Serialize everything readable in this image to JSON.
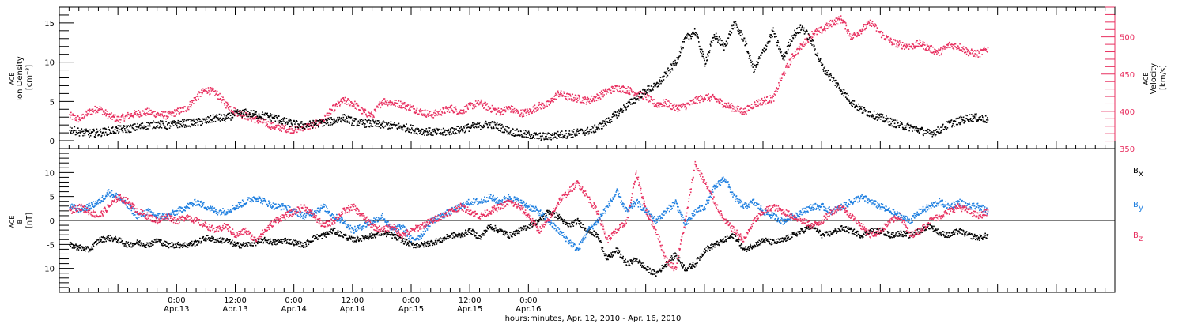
{
  "colors": {
    "black": "#000000",
    "pink": "#e83060",
    "blue": "#1e7fe0"
  },
  "chart_data": [
    {
      "type": "scatter",
      "panel": "top",
      "ylabel_left_lines": [
        "ACE",
        "Ion Density",
        "[cm⁻³]"
      ],
      "ylabel_right_lines": [
        "ACE",
        "Velocity",
        "[km/s]"
      ],
      "ylim_left": [
        -1,
        17
      ],
      "yticks_left": [
        "0",
        "5",
        "10",
        "15"
      ],
      "yticks_left_values": [
        0,
        5,
        10,
        15
      ],
      "ylim_right": [
        350,
        540
      ],
      "yticks_right": [
        "350",
        "400",
        "450",
        "500"
      ],
      "yticks_right_values": [
        350,
        400,
        450,
        500
      ],
      "grid": false,
      "series": [
        {
          "axis": "left",
          "color": "#000000",
          "x": [
            -22,
            -20,
            -18,
            -16,
            -14,
            -12,
            -10,
            -8,
            -6,
            -4,
            -2,
            0,
            2,
            4,
            6,
            8,
            10,
            12,
            14,
            16,
            18,
            20,
            22,
            24,
            26,
            28,
            30,
            32,
            34,
            36,
            38,
            40,
            42,
            44,
            46,
            48,
            50,
            52,
            54,
            56,
            58,
            60,
            62,
            64,
            66,
            68,
            70,
            72,
            74,
            76,
            78,
            80,
            82,
            84,
            86,
            88,
            90,
            92,
            94,
            96,
            98,
            100,
            102,
            104,
            106,
            108,
            110,
            112,
            114,
            116,
            118,
            120,
            122,
            124,
            126,
            128,
            130,
            132,
            134,
            136,
            138,
            140,
            142,
            144,
            146,
            148,
            150,
            152,
            154,
            156,
            158,
            160,
            162,
            164,
            166
          ],
          "values": [
            1.5,
            1.2,
            1.0,
            1.1,
            1.3,
            1.5,
            1.6,
            1.8,
            2.0,
            2.2,
            2.0,
            2.2,
            2.3,
            2.4,
            2.6,
            3.0,
            2.9,
            3.5,
            3.6,
            3.4,
            3.2,
            3.0,
            2.5,
            2.2,
            2.0,
            2.2,
            2.4,
            2.6,
            3.0,
            2.5,
            2.3,
            2.2,
            2.1,
            2.0,
            1.8,
            1.6,
            1.3,
            1.2,
            1.1,
            1.3,
            1.5,
            1.8,
            2.0,
            2.2,
            1.8,
            1.3,
            1.0,
            0.8,
            0.6,
            0.6,
            0.8,
            0.9,
            1.1,
            1.3,
            1.7,
            2.5,
            3.5,
            4.5,
            5.5,
            6.5,
            7.0,
            8.5,
            10.0,
            13.0,
            14.0,
            10.0,
            13.5,
            12.0,
            15.0,
            13.0,
            9.0,
            11.5,
            14.0,
            10.5,
            13.5,
            14.5,
            12.5,
            9.5,
            8.0,
            6.5,
            5.0,
            4.0,
            3.5,
            3.0,
            2.5,
            2.0,
            1.8,
            1.4,
            1.0,
            1.4,
            2.2,
            2.6,
            3.0,
            3.0,
            2.7
          ]
        },
        {
          "axis": "right",
          "color": "#e83060",
          "x": [
            -22,
            -20,
            -18,
            -16,
            -14,
            -12,
            -10,
            -8,
            -6,
            -4,
            -2,
            0,
            2,
            4,
            6,
            8,
            10,
            12,
            14,
            16,
            18,
            20,
            22,
            24,
            26,
            28,
            30,
            32,
            34,
            36,
            38,
            40,
            42,
            44,
            46,
            48,
            50,
            52,
            54,
            56,
            58,
            60,
            62,
            64,
            66,
            68,
            70,
            72,
            74,
            76,
            78,
            80,
            82,
            84,
            86,
            88,
            90,
            92,
            94,
            96,
            98,
            100,
            102,
            104,
            106,
            108,
            110,
            112,
            114,
            116,
            118,
            120,
            122,
            124,
            126,
            128,
            130,
            132,
            134,
            136,
            138,
            140,
            142,
            144,
            146,
            148,
            150,
            152,
            154,
            156,
            158,
            160,
            162,
            164,
            166
          ],
          "values": [
            395,
            390,
            400,
            405,
            395,
            390,
            395,
            398,
            400,
            397,
            395,
            400,
            405,
            420,
            430,
            425,
            410,
            400,
            395,
            390,
            385,
            380,
            378,
            376,
            380,
            382,
            390,
            405,
            415,
            412,
            400,
            395,
            415,
            412,
            410,
            405,
            400,
            396,
            400,
            405,
            400,
            408,
            412,
            405,
            400,
            405,
            398,
            400,
            408,
            410,
            425,
            420,
            418,
            415,
            420,
            428,
            432,
            430,
            425,
            420,
            410,
            412,
            405,
            408,
            415,
            420,
            418,
            410,
            405,
            400,
            410,
            415,
            418,
            450,
            475,
            490,
            505,
            510,
            520,
            525,
            500,
            510,
            520,
            505,
            495,
            490,
            488,
            492,
            485,
            480,
            490,
            488,
            480,
            478,
            485
          ]
        }
      ]
    },
    {
      "type": "scatter",
      "panel": "bottom",
      "ylabel_lines": [
        "ACE",
        "B",
        "[nT]"
      ],
      "ylim": [
        -15,
        15
      ],
      "yticks": [
        "-10",
        "-5",
        "0",
        "5",
        "10"
      ],
      "yticks_values": [
        -10,
        -5,
        0,
        5,
        10
      ],
      "zero_line": true,
      "grid": false,
      "series": [
        {
          "name": "Bx",
          "legend_main": "B",
          "legend_sub": "x",
          "color": "#000000",
          "x": [
            -22,
            -20,
            -18,
            -16,
            -14,
            -12,
            -10,
            -8,
            -6,
            -4,
            -2,
            0,
            2,
            4,
            6,
            8,
            10,
            12,
            14,
            16,
            18,
            20,
            22,
            24,
            26,
            28,
            30,
            32,
            34,
            36,
            38,
            40,
            42,
            44,
            46,
            48,
            50,
            52,
            54,
            56,
            58,
            60,
            62,
            64,
            66,
            68,
            70,
            72,
            74,
            76,
            78,
            80,
            82,
            84,
            86,
            88,
            90,
            92,
            94,
            96,
            98,
            100,
            102,
            104,
            106,
            108,
            110,
            112,
            114,
            116,
            118,
            120,
            122,
            124,
            126,
            128,
            130,
            132,
            134,
            136,
            138,
            140,
            142,
            144,
            146,
            148,
            150,
            152,
            154,
            156,
            158,
            160,
            162,
            164,
            166
          ],
          "values": [
            -5,
            -5.5,
            -6,
            -4,
            -3.5,
            -4,
            -5,
            -4.5,
            -5,
            -4,
            -5,
            -5,
            -5,
            -4.5,
            -3.5,
            -4,
            -4,
            -5,
            -5,
            -4.5,
            -4,
            -4.5,
            -4,
            -4.5,
            -5,
            -3.5,
            -3,
            -2,
            -3,
            -4,
            -3.5,
            -3,
            -2.5,
            -3,
            -4,
            -5,
            -5,
            -4.5,
            -4,
            -3,
            -3,
            -2,
            -3.5,
            -1,
            -2,
            -3,
            -2,
            -1,
            0,
            2,
            1,
            -1,
            0,
            -2,
            -3,
            -8,
            -6,
            -9,
            -8,
            -10,
            -11,
            -9,
            -7,
            -10,
            -9,
            -6,
            -5,
            -4,
            -3,
            -6,
            -5,
            -4,
            -4.5,
            -4,
            -3,
            -2,
            -1,
            -3,
            -2.5,
            -1.5,
            -2,
            -3,
            -2,
            -2,
            -3,
            -2.5,
            -3,
            -2,
            -1,
            -2.5,
            -3,
            -2,
            -3,
            -3.5,
            -3
          ]
        },
        {
          "name": "By",
          "legend_main": "B",
          "legend_sub": "y",
          "color": "#1e7fe0",
          "x": [
            -22,
            -20,
            -18,
            -16,
            -14,
            -12,
            -10,
            -8,
            -6,
            -4,
            -2,
            0,
            2,
            4,
            6,
            8,
            10,
            12,
            14,
            16,
            18,
            20,
            22,
            24,
            26,
            28,
            30,
            32,
            34,
            36,
            38,
            40,
            42,
            44,
            46,
            48,
            50,
            52,
            54,
            56,
            58,
            60,
            62,
            64,
            66,
            68,
            70,
            72,
            74,
            76,
            78,
            80,
            82,
            84,
            86,
            88,
            90,
            92,
            94,
            96,
            98,
            100,
            102,
            104,
            106,
            108,
            110,
            112,
            114,
            116,
            118,
            120,
            122,
            124,
            126,
            128,
            130,
            132,
            134,
            136,
            138,
            140,
            142,
            144,
            146,
            148,
            150,
            152,
            154,
            156,
            158,
            160,
            162,
            164,
            166
          ],
          "values": [
            3,
            2.5,
            3,
            4,
            6,
            5,
            3,
            1,
            2,
            1,
            1,
            2,
            3,
            4,
            3,
            2,
            2,
            3,
            4,
            5,
            4,
            3,
            3,
            2,
            1,
            2,
            3,
            1,
            0,
            -2,
            -1,
            0,
            1,
            -2,
            -1,
            -4,
            -3,
            0,
            1,
            2,
            3,
            4,
            4,
            5,
            4,
            5,
            4,
            3,
            2,
            0,
            -2,
            -4,
            -6,
            -2,
            0,
            3,
            6,
            2,
            4,
            2,
            0,
            2,
            4,
            -1,
            2,
            3,
            7,
            9,
            5,
            3,
            4,
            2,
            1,
            0,
            1,
            2,
            3,
            3,
            2,
            3,
            4,
            5,
            4,
            3,
            2,
            1,
            0,
            2,
            3,
            4,
            3,
            4,
            3,
            3,
            2
          ]
        },
        {
          "name": "Bz",
          "legend_main": "B",
          "legend_sub": "z",
          "color": "#e83060",
          "x": [
            -22,
            -20,
            -18,
            -16,
            -14,
            -12,
            -10,
            -8,
            -6,
            -4,
            -2,
            0,
            2,
            4,
            6,
            8,
            10,
            12,
            14,
            16,
            18,
            20,
            22,
            24,
            26,
            28,
            30,
            32,
            34,
            36,
            38,
            40,
            42,
            44,
            46,
            48,
            50,
            52,
            54,
            56,
            58,
            60,
            62,
            64,
            66,
            68,
            70,
            72,
            74,
            76,
            78,
            80,
            82,
            84,
            86,
            88,
            90,
            92,
            94,
            96,
            98,
            100,
            102,
            104,
            106,
            108,
            110,
            112,
            114,
            116,
            118,
            120,
            122,
            124,
            126,
            128,
            130,
            132,
            134,
            136,
            138,
            140,
            142,
            144,
            146,
            148,
            150,
            152,
            154,
            156,
            158,
            160,
            162,
            164,
            166
          ],
          "values": [
            2,
            3,
            2,
            1,
            3,
            5,
            4,
            2,
            1,
            0,
            1,
            0,
            1,
            0,
            -1,
            -2,
            -1,
            -3,
            -2,
            -4,
            -2,
            0,
            1,
            2,
            3,
            1,
            -1,
            0,
            2,
            3,
            1,
            -1,
            -2,
            -1,
            -3,
            -2,
            -1,
            0,
            1,
            2,
            3,
            2,
            1,
            2,
            3,
            4,
            3,
            1,
            -2,
            0,
            4,
            6,
            8,
            5,
            2,
            -4,
            -2,
            0,
            10,
            2,
            -2,
            -8,
            -10,
            0,
            12,
            8,
            4,
            0,
            -2,
            -4,
            0,
            2,
            3,
            2,
            1,
            0,
            -1,
            0,
            2,
            3,
            1,
            -1,
            -3,
            -2,
            0,
            1,
            -3,
            -2,
            0,
            1,
            2,
            3,
            2,
            1,
            2
          ]
        }
      ]
    }
  ],
  "x_axis": {
    "range_hours": [
      -24,
      192
    ],
    "ticks": [
      {
        "hour": 0,
        "time": "0:00",
        "date": "Apr.13"
      },
      {
        "hour": 12,
        "time": "12:00",
        "date": "Apr.13"
      },
      {
        "hour": 24,
        "time": "0:00",
        "date": "Apr.14"
      },
      {
        "hour": 36,
        "time": "12:00",
        "date": "Apr.14"
      },
      {
        "hour": 48,
        "time": "0:00",
        "date": "Apr.15"
      },
      {
        "hour": 60,
        "time": "12:00",
        "date": "Apr.15"
      },
      {
        "hour": 72,
        "time": "0:00",
        "date": "Apr.16"
      }
    ],
    "label": "hours:minutes, Apr. 12, 2010 - Apr. 16, 2010"
  }
}
